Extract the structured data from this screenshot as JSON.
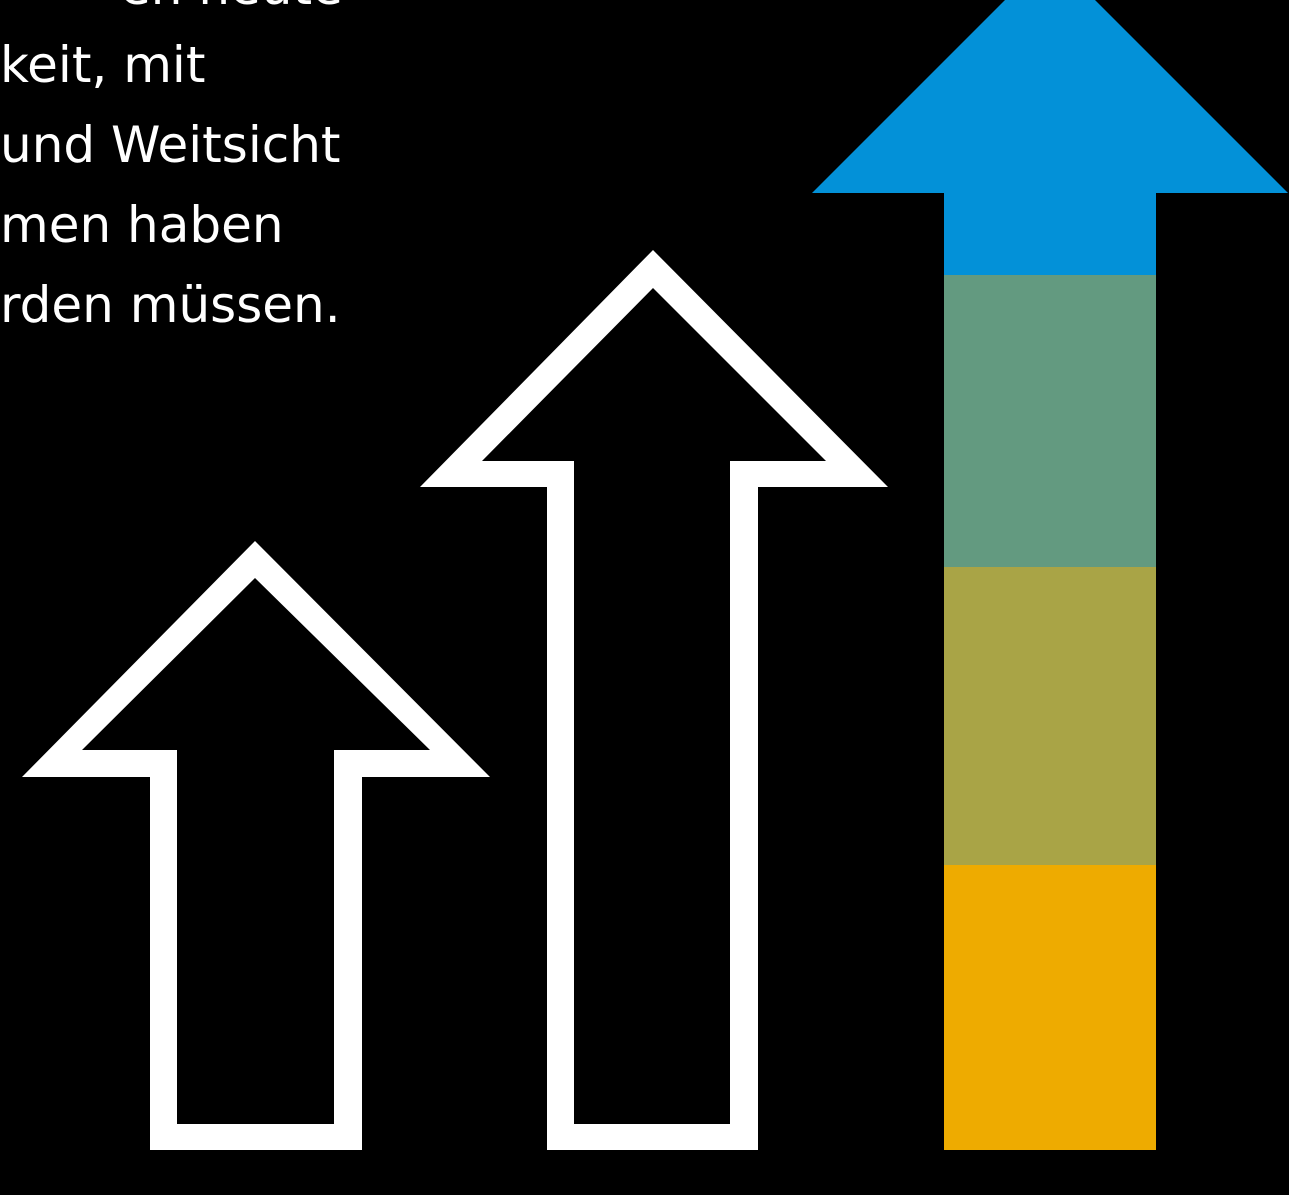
{
  "text_lines": [
    "en heute",
    "keit, mit",
    "und Weitsicht",
    "men haben",
    "rden müssen."
  ]
}
